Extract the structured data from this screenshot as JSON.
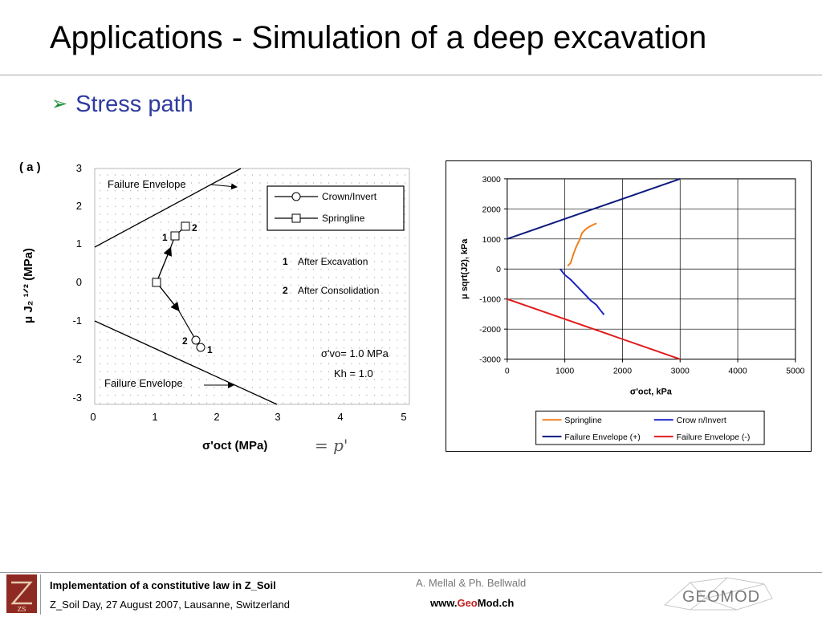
{
  "slide": {
    "title": "Applications - Simulation of a deep excavation",
    "bullet": "Stress path"
  },
  "figure_a": {
    "panel_label": "( a )",
    "ylabel": "μ J₂ ¹ᐟ² (MPa)",
    "xlabel": "σ'oct (MPa)",
    "x_ticks": [
      "0",
      "1",
      "2",
      "3",
      "4",
      "5"
    ],
    "y_ticks": [
      "3",
      "2",
      "1",
      "0",
      "-1",
      "-2",
      "-3"
    ],
    "upper_envelope_label": "Failure Envelope",
    "lower_envelope_label": "Failure Envelope",
    "legend": {
      "crown": "Crown/Invert",
      "springline": "Springline",
      "note1_num": "1",
      "note1": "After Excavation",
      "note2_num": "2",
      "note2": "After Consolidation"
    },
    "point_labels": {
      "spring_1": "1",
      "spring_2": "2",
      "crown_1": "1",
      "crown_2": "2"
    },
    "param_line1": "σ'vo= 1.0 MPa",
    "param_line2": "Kh = 1.0",
    "handwriting": "= p'"
  },
  "chart_data": {
    "type": "line",
    "xlabel": "σ'oct, kPa",
    "ylabel": "μ sqrt(J2), kPa",
    "xlim": [
      0,
      5000
    ],
    "ylim": [
      -3000,
      3000
    ],
    "x_ticks": [
      0,
      1000,
      2000,
      3000,
      4000,
      5000
    ],
    "y_ticks": [
      3000,
      2000,
      1000,
      0,
      -1000,
      -2000,
      -3000
    ],
    "grid": true,
    "legend_position": "bottom",
    "series": [
      {
        "name": "Springline",
        "color": "#f07f1a",
        "x": [
          1050,
          1100,
          1150,
          1200,
          1250,
          1300,
          1350,
          1400,
          1450,
          1500,
          1550
        ],
        "y": [
          100,
          200,
          500,
          750,
          950,
          1200,
          1300,
          1380,
          1430,
          1480,
          1520
        ]
      },
      {
        "name": "Crow n/Invert",
        "color": "#1b22c4",
        "x": [
          920,
          1000,
          1100,
          1200,
          1300,
          1400,
          1450,
          1500,
          1550,
          1600,
          1680
        ],
        "y": [
          0,
          -200,
          -350,
          -550,
          -750,
          -950,
          -1050,
          -1120,
          -1200,
          -1330,
          -1520
        ]
      },
      {
        "name": "Failure Envelope (+)",
        "color": "#0d1a7e",
        "x": [
          0,
          3000
        ],
        "y": [
          1000,
          3000
        ]
      },
      {
        "name": "Failure Envelope (-)",
        "color": "#e01b1b",
        "x": [
          0,
          3000
        ],
        "y": [
          -1000,
          -3000
        ]
      }
    ]
  },
  "footer": {
    "line1": "Implementation of a constitutive law in Z_Soil",
    "line2": "Z_Soil Day, 27 August 2007, Lausanne, Switzerland",
    "authors": "A. Mellal & Ph. Bellwald",
    "website_prefix": "www.",
    "website_geo": "Geo",
    "website_mod": "Mod",
    "website_suffix": ".ch",
    "logo_text": "GEOMOD",
    "logo_left_text": "ZS"
  },
  "colors": {
    "title": "#000000",
    "bullet_text": "#2e3b9e",
    "bullet_arrow": "#1f8f3a",
    "springline": "#f07f1a",
    "crown": "#1b22c4",
    "envelope_plus": "#0d1a7e",
    "envelope_minus": "#e01b1b",
    "brand_red": "#c42020"
  }
}
